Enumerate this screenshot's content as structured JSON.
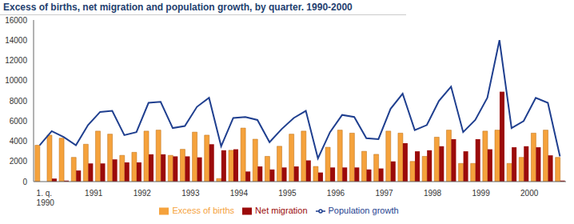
{
  "chart_data": {
    "type": "bar",
    "title": "Excess of births, net migration and population growth, by quarter. 1990-2000",
    "categories": [
      "1. q. 1990",
      null,
      null,
      null,
      "1991",
      null,
      null,
      null,
      "1992",
      null,
      null,
      null,
      "1993",
      null,
      null,
      null,
      "1994",
      null,
      null,
      null,
      "1995",
      null,
      null,
      null,
      "1996",
      null,
      null,
      null,
      "1997",
      null,
      null,
      null,
      "1998",
      null,
      null,
      null,
      "1999",
      null,
      null,
      null,
      "2000",
      null,
      null,
      null
    ],
    "series": [
      {
        "name": "Excess of births",
        "type": "bar",
        "color": "#f5a23c",
        "values": [
          3600,
          4600,
          4300,
          2400,
          3700,
          5000,
          4700,
          2600,
          2900,
          5000,
          5100,
          2600,
          3200,
          4900,
          4600,
          300,
          3100,
          5300,
          4200,
          2500,
          3500,
          4700,
          5000,
          1500,
          3400,
          5100,
          4800,
          3000,
          2700,
          5000,
          4800,
          2000,
          2500,
          4400,
          5100,
          1800,
          1800,
          5000,
          5100,
          1800,
          2400,
          4800,
          5100,
          2400
        ]
      },
      {
        "name": "Net migration",
        "type": "bar",
        "color": "#9b0a0a",
        "values": [
          0,
          300,
          100,
          1100,
          1800,
          1800,
          2200,
          1900,
          1900,
          2700,
          2700,
          2500,
          2500,
          2400,
          3700,
          3100,
          3200,
          1000,
          1500,
          1200,
          1400,
          1500,
          2100,
          900,
          1400,
          1400,
          1400,
          1200,
          1300,
          2000,
          3800,
          3000,
          3100,
          3500,
          4200,
          3000,
          4200,
          3200,
          8900,
          3400,
          3500,
          3400,
          2600,
          100
        ]
      },
      {
        "name": "Population growth",
        "type": "line",
        "color": "#1f3f8f",
        "values": [
          3600,
          5000,
          4400,
          3600,
          5600,
          6900,
          7000,
          4600,
          4900,
          7800,
          7900,
          5300,
          5500,
          7400,
          8300,
          3500,
          6300,
          6400,
          6100,
          3900,
          5200,
          6300,
          7000,
          2300,
          4900,
          6600,
          6400,
          4300,
          4200,
          7200,
          8700,
          5100,
          5600,
          8000,
          9400,
          4900,
          6100,
          8300,
          14000,
          5300,
          6000,
          8300,
          7800,
          2500
        ]
      }
    ],
    "ylim": [
      0,
      16000
    ],
    "yticks": [
      0,
      2000,
      4000,
      6000,
      8000,
      10000,
      12000,
      14000,
      16000
    ],
    "grid": false,
    "legend": "bottom"
  }
}
